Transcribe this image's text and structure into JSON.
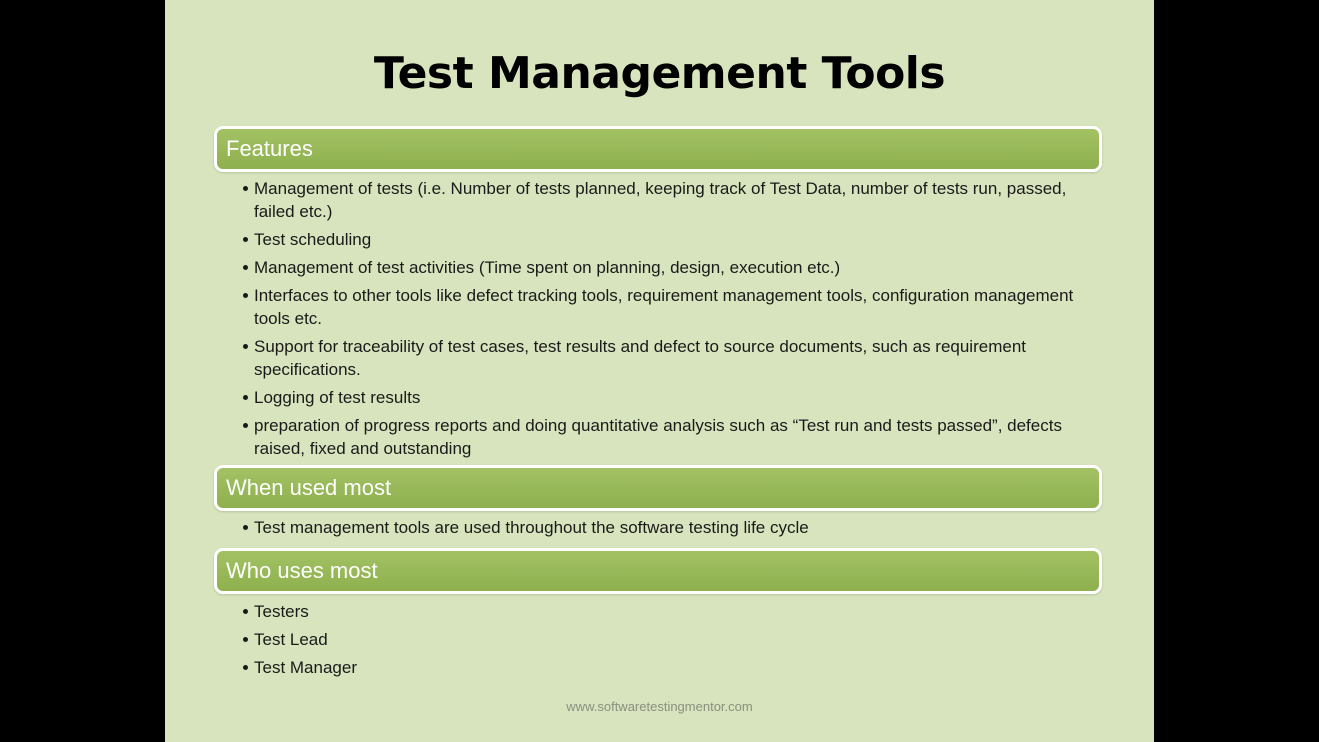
{
  "slide": {
    "title": "Test Management Tools",
    "footer": "www.softwaretestingmentor.com",
    "sections": [
      {
        "heading": "Features",
        "items": [
          "Management of tests (i.e. Number of tests planned, keeping track of Test Data, number of tests run, passed, failed etc.)",
          "Test scheduling",
          "Management of test activities (Time spent on planning, design, execution etc.)",
          "Interfaces to other tools like defect tracking tools, requirement management tools, configuration management tools etc.",
          "Support for traceability of test cases, test results and defect to source documents, such as requirement specifications.",
          "Logging of test results",
          "preparation of progress reports and doing  quantitative analysis  such as “Test run and tests passed”, defects raised, fixed and outstanding"
        ]
      },
      {
        "heading": "When used most",
        "items": [
          "Test management tools are used throughout the software testing life cycle"
        ]
      },
      {
        "heading": "Who uses most",
        "items": [
          "Testers",
          "Test Lead",
          "Test Manager"
        ]
      }
    ]
  }
}
